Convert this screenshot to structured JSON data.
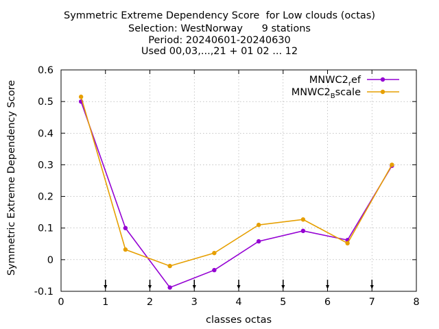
{
  "titles": [
    "Symmetric Extreme Dependency Score  for Low clouds (octas)",
    "Selection: WestNorway      9 stations",
    "Period: 20240601-20240630",
    "Used 00,03,...,21 + 01 02 ... 12"
  ],
  "chart_data": {
    "type": "line",
    "xlabel": "classes octas",
    "ylabel": "Symmetric Extreme Dependency Score",
    "xlim": [
      0,
      8
    ],
    "ylim": [
      -0.1,
      0.6
    ],
    "xticks": [
      "0",
      "1",
      "2",
      "3",
      "4",
      "5",
      "6",
      "7",
      "8"
    ],
    "yticks": [
      "-0.1",
      "0",
      "0.1",
      "0.2",
      "0.3",
      "0.4",
      "0.5",
      "0.6"
    ],
    "grid": true,
    "legend_position": "top-right",
    "threshold_markers_x": [
      1,
      2,
      3,
      4,
      5,
      6,
      7
    ],
    "series": [
      {
        "name": "MNWC2_ref",
        "legend_main": "MNWC2",
        "legend_sub": "r",
        "legend_tail": "ef",
        "color": "#9400d3",
        "x": [
          0.45,
          1.45,
          2.45,
          3.45,
          4.45,
          5.45,
          6.45,
          7.45
        ],
        "y": [
          0.5,
          0.1,
          -0.088,
          -0.033,
          0.058,
          0.091,
          0.062,
          0.297
        ]
      },
      {
        "name": "MNWC2_Bscale",
        "legend_main": "MNWC2",
        "legend_sub": "B",
        "legend_tail": "scale",
        "color": "#e69f00",
        "x": [
          0.45,
          1.45,
          2.45,
          3.45,
          4.45,
          5.45,
          6.45,
          7.45
        ],
        "y": [
          0.515,
          0.032,
          -0.02,
          0.021,
          0.11,
          0.127,
          0.052,
          0.3
        ]
      }
    ]
  }
}
